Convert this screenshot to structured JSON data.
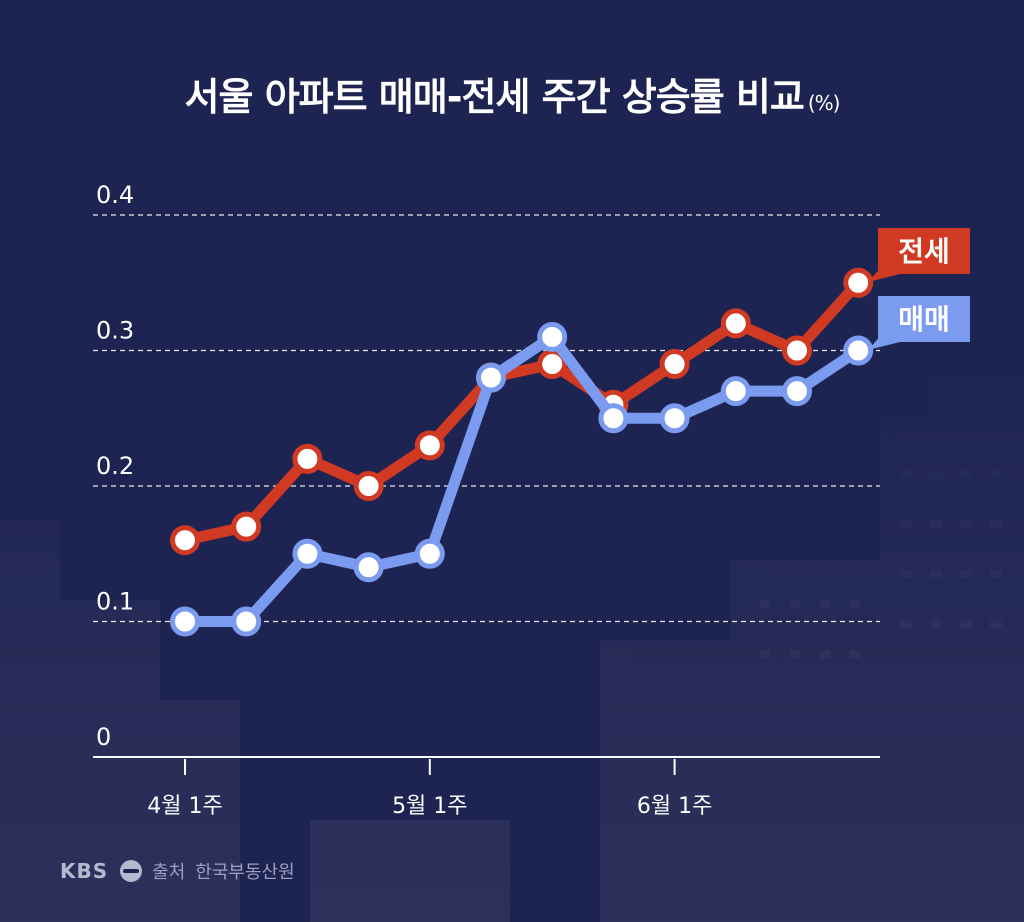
{
  "title": "서울 아파트 매매-전세 주간 상승률 비교",
  "unit": "(%)",
  "source": {
    "logo": "KBS",
    "label": "출처",
    "name": "한국부동산원"
  },
  "colors": {
    "background": "#1e2452",
    "jeonse": "#d13a22",
    "maemae": "#7a9bef",
    "grid": "#ffffff",
    "text": "#ffffff"
  },
  "chart_data": {
    "type": "line",
    "categories": [
      "4월 1주",
      "",
      "",
      "",
      "5월 1주",
      "",
      "",
      "",
      "6월 1주",
      "",
      "",
      ""
    ],
    "x_tick_labels": [
      "4월 1주",
      "5월 1주",
      "6월 1주"
    ],
    "x_tick_indices": [
      0,
      4,
      8
    ],
    "yticks": [
      "0",
      "0.1",
      "0.2",
      "0.3",
      "0.4"
    ],
    "ylim": [
      0,
      0.4
    ],
    "grid": true,
    "series": [
      {
        "name": "전세",
        "color": "#d13a22",
        "x": [
          0,
          1,
          2,
          3,
          4,
          5,
          6,
          7,
          8,
          9,
          10,
          11
        ],
        "values": [
          0.16,
          0.17,
          0.22,
          0.2,
          0.23,
          0.28,
          0.29,
          0.26,
          0.29,
          0.32,
          0.3,
          0.35
        ]
      },
      {
        "name": "매매",
        "color": "#7a9bef",
        "x": [
          0,
          1,
          2,
          3,
          4,
          5,
          6,
          7,
          8,
          9,
          10,
          11
        ],
        "values": [
          0.1,
          0.1,
          0.15,
          0.14,
          0.15,
          0.28,
          0.31,
          0.25,
          0.25,
          0.27,
          0.27,
          0.3
        ]
      }
    ]
  }
}
